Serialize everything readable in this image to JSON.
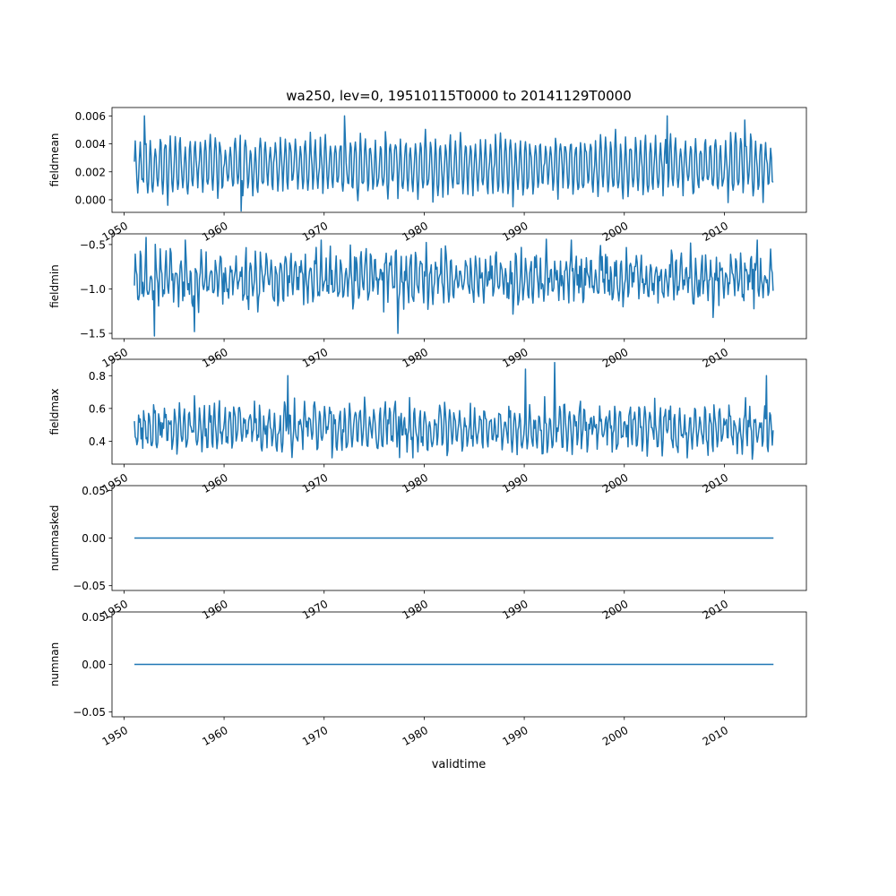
{
  "title": "wa250, lev=0, 19510115T0000 to 20141129T0000",
  "line_color": "#1f77b4",
  "xlabel": "validtime",
  "x_tick_labels": [
    "1950",
    "1960",
    "1970",
    "1980",
    "1990",
    "2000",
    "2010"
  ],
  "chart_data": [
    {
      "type": "line",
      "ylabel": "fieldmean",
      "xlim": [
        1948.8,
        2018.2
      ],
      "ylim": [
        -0.0009,
        0.0066
      ],
      "y_ticks": [
        0.0,
        0.002,
        0.004,
        0.006
      ],
      "y_tick_labels": [
        "0.000",
        "0.002",
        "0.004",
        "0.006"
      ],
      "x_range": [
        1951.04,
        2014.91
      ],
      "pattern": {
        "base": 0.0024,
        "amp": 0.0017,
        "noise": 0.0008,
        "seed": 11
      },
      "extremes": [
        [
          1952.0,
          0.006
        ],
        [
          1961.7,
          -0.0008
        ],
        [
          1972.0,
          0.006
        ],
        [
          1988.9,
          -0.0005
        ],
        [
          2004.3,
          0.006
        ],
        [
          2012.0,
          0.0057
        ]
      ]
    },
    {
      "type": "line",
      "ylabel": "fieldmin",
      "xlim": [
        1948.8,
        2018.2
      ],
      "ylim": [
        -1.56,
        -0.38
      ],
      "y_ticks": [
        -1.5,
        -1.0,
        -0.5
      ],
      "y_tick_labels": [
        "−1.5",
        "−1.0",
        "−0.5"
      ],
      "x_range": [
        1951.04,
        2014.91
      ],
      "pattern": {
        "base": -0.88,
        "amp": 0.18,
        "noise": 0.22,
        "seed": 23
      },
      "extremes": [
        [
          1952.2,
          -0.42
        ],
        [
          1953.0,
          -1.53
        ],
        [
          1957.0,
          -1.48
        ],
        [
          1977.4,
          -1.5
        ],
        [
          1992.2,
          -0.44
        ],
        [
          2013.3,
          -0.45
        ]
      ]
    },
    {
      "type": "line",
      "ylabel": "fieldmax",
      "xlim": [
        1948.8,
        2018.2
      ],
      "ylim": [
        0.26,
        0.9
      ],
      "y_ticks": [
        0.4,
        0.6,
        0.8
      ],
      "y_tick_labels": [
        "0.4",
        "0.6",
        "0.8"
      ],
      "x_range": [
        1951.04,
        2014.91
      ],
      "pattern": {
        "base": 0.48,
        "amp": 0.09,
        "noise": 0.1,
        "seed": 37
      },
      "extremes": [
        [
          1993.0,
          0.88
        ],
        [
          1990.1,
          0.84
        ],
        [
          1966.4,
          0.8
        ],
        [
          2014.2,
          0.8
        ],
        [
          2012.8,
          0.29
        ],
        [
          1977.5,
          0.3
        ]
      ]
    },
    {
      "type": "line",
      "ylabel": "nummasked",
      "xlim": [
        1948.8,
        2018.2
      ],
      "ylim": [
        -0.055,
        0.055
      ],
      "y_ticks": [
        -0.05,
        0.0,
        0.05
      ],
      "y_tick_labels": [
        "−0.05",
        "0.00",
        "0.05"
      ],
      "x_range": [
        1951.04,
        2014.91
      ],
      "constant": 0.0
    },
    {
      "type": "line",
      "ylabel": "numnan",
      "xlim": [
        1948.8,
        2018.2
      ],
      "ylim": [
        -0.055,
        0.055
      ],
      "y_ticks": [
        -0.05,
        0.0,
        0.05
      ],
      "y_tick_labels": [
        "−0.05",
        "0.00",
        "0.05"
      ],
      "x_range": [
        1951.04,
        2014.91
      ],
      "constant": 0.0
    }
  ]
}
